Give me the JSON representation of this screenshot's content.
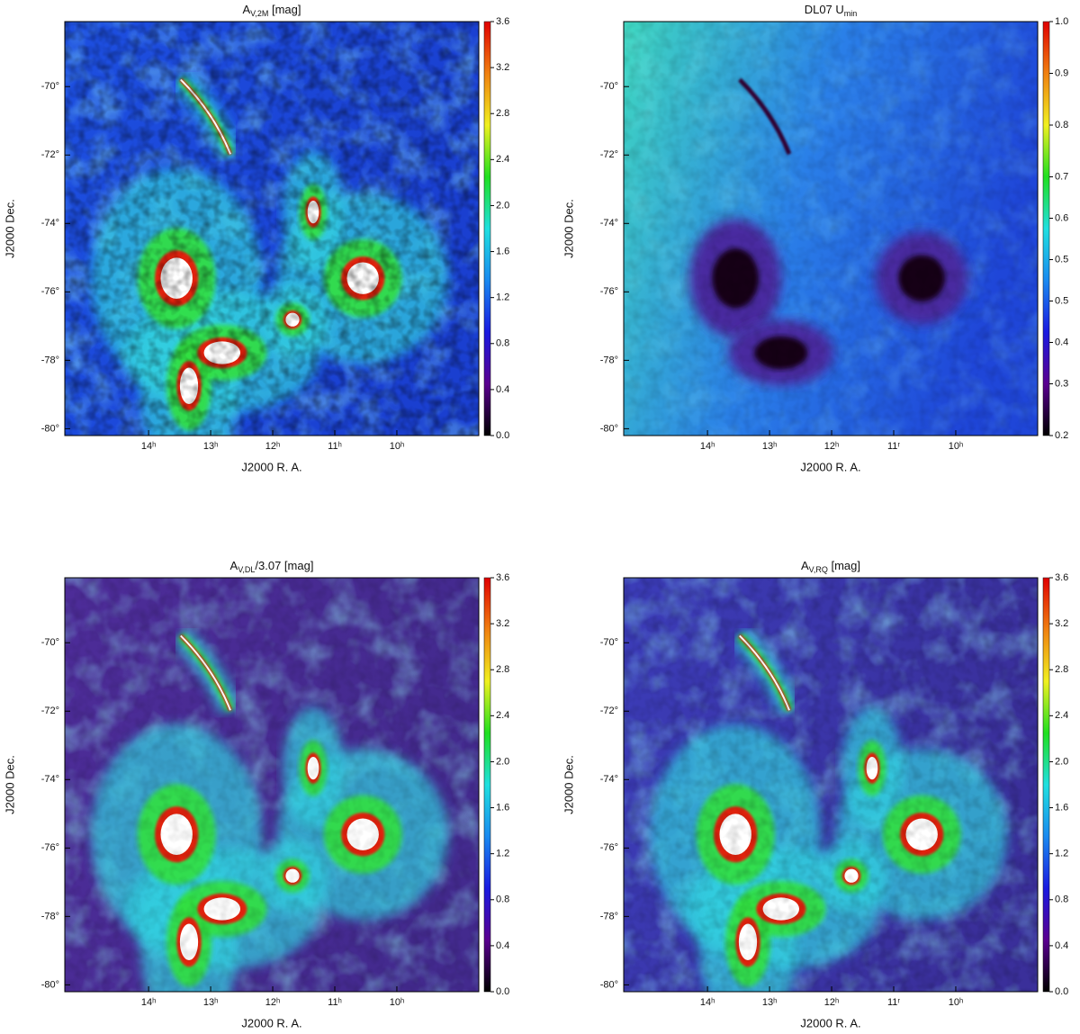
{
  "chart_data": [
    {
      "type": "heatmap",
      "title": {
        "text": "A",
        "subscript": "V,2M",
        "suffix": " [mag]"
      },
      "xlabel": "J2000 R. A.",
      "ylabel": "J2000 Dec.",
      "xlim": [
        15.35,
        8.68
      ],
      "xticks": [
        {
          "value": 14,
          "label": "14ʰ"
        },
        {
          "value": 13,
          "label": "13ʰ"
        },
        {
          "value": 12,
          "label": "12ʰ"
        },
        {
          "value": 11,
          "label": "11ʰ"
        },
        {
          "value": 10,
          "label": "10ʰ"
        }
      ],
      "ylim": [
        -80.2,
        -68.1
      ],
      "yticks": [
        {
          "value": -70,
          "label": "-70°"
        },
        {
          "value": -72,
          "label": "-72°"
        },
        {
          "value": -74,
          "label": "-74°"
        },
        {
          "value": -76,
          "label": "-76°"
        },
        {
          "value": -78,
          "label": "-78°"
        },
        {
          "value": -80,
          "label": "-80°"
        }
      ],
      "colorbar": {
        "lim": [
          0,
          3.6
        ],
        "ticks": [
          {
            "value": 0,
            "label": "0.0"
          },
          0.4,
          0.8,
          1.2,
          1.6,
          {
            "value": 2,
            "label": "2.0"
          },
          2.4,
          2.8,
          3.2,
          3.6
        ],
        "colors": [
          "#000000",
          "#5a0090",
          "#1a1ae0",
          "#1a8af0",
          "#20e0e0",
          "#20e020",
          "#f0f020",
          "#f08010",
          "#e00000"
        ]
      }
    },
    {
      "type": "heatmap",
      "title": {
        "text": "DL07 U",
        "subscript": "min",
        "suffix": ""
      },
      "xlabel": "J2000 R. A.",
      "ylabel": "J2000 Dec.",
      "xlim": [
        15.35,
        8.68
      ],
      "xticks": [
        {
          "value": 14,
          "label": "14ʰ"
        },
        {
          "value": 13,
          "label": "13ʰ"
        },
        {
          "value": 12,
          "label": "12ʰ"
        },
        {
          "value": 11,
          "label": "11ʳ"
        },
        {
          "value": 10,
          "label": "10ʰ"
        }
      ],
      "ylim": [
        -80.2,
        -68.1
      ],
      "yticks": [
        {
          "value": -70,
          "label": "-70°"
        },
        {
          "value": -72,
          "label": "-72°"
        },
        {
          "value": -74,
          "label": "-74°"
        },
        {
          "value": -76,
          "label": "-76°"
        },
        {
          "value": -78,
          "label": "-78°"
        },
        {
          "value": -80,
          "label": "-80°"
        }
      ],
      "colorbar": {
        "lim": [
          0.2,
          1.0
        ],
        "ticks": [
          0.2,
          0.3,
          {
            "value": 0.38,
            "label": "0.4"
          },
          {
            "value": 0.46,
            "label": "0.5"
          },
          {
            "value": 0.54,
            "label": "0.5"
          },
          {
            "value": 0.62,
            "label": "0.6"
          },
          0.7,
          0.8,
          0.9,
          {
            "value": 1.0,
            "label": "1.0"
          }
        ],
        "colors": [
          "#000000",
          "#5a0090",
          "#1a1ae0",
          "#1a8af0",
          "#20e0e0",
          "#20e020",
          "#f0f020",
          "#f08010",
          "#e00000"
        ]
      }
    },
    {
      "type": "heatmap",
      "title": {
        "text": "A",
        "subscript": "V,DL",
        "suffix": "/3.07 [mag]"
      },
      "xlabel": "J2000 R. A.",
      "ylabel": "J2000 Dec.",
      "xlim": [
        15.35,
        8.68
      ],
      "xticks": [
        {
          "value": 14,
          "label": "14ʰ"
        },
        {
          "value": 13,
          "label": "13ʰ"
        },
        {
          "value": 12,
          "label": "12ʰ"
        },
        {
          "value": 11,
          "label": "11ʰ"
        },
        {
          "value": 10,
          "label": "10ʰ"
        }
      ],
      "ylim": [
        -80.2,
        -68.1
      ],
      "yticks": [
        {
          "value": -70,
          "label": "-70°"
        },
        {
          "value": -72,
          "label": "-72°"
        },
        {
          "value": -74,
          "label": "-74°"
        },
        {
          "value": -76,
          "label": "-76°"
        },
        {
          "value": -78,
          "label": "-78°"
        },
        {
          "value": -80,
          "label": "-80°"
        }
      ],
      "colorbar": {
        "lim": [
          0,
          3.6
        ],
        "ticks": [
          {
            "value": 0,
            "label": "0.0"
          },
          0.4,
          0.8,
          1.2,
          1.6,
          {
            "value": 2,
            "label": "2.0"
          },
          2.4,
          2.8,
          3.2,
          3.6
        ],
        "colors": [
          "#000000",
          "#5a0090",
          "#1a1ae0",
          "#1a8af0",
          "#20e0e0",
          "#20e020",
          "#f0f020",
          "#f08010",
          "#e00000"
        ]
      }
    },
    {
      "type": "heatmap",
      "title": {
        "text": "A",
        "subscript": "V,RQ",
        "suffix": " [mag]"
      },
      "xlabel": "J2000 R. A.",
      "ylabel": "J2000 Dec.",
      "xlim": [
        15.35,
        8.68
      ],
      "xticks": [
        {
          "value": 14,
          "label": "14ʰ"
        },
        {
          "value": 13,
          "label": "13ʰ"
        },
        {
          "value": 12,
          "label": "12ʰ"
        },
        {
          "value": 11,
          "label": "11ʳ"
        },
        {
          "value": 10,
          "label": "10ʰ"
        }
      ],
      "ylim": [
        -80.2,
        -68.1
      ],
      "yticks": [
        {
          "value": -70,
          "label": "-70°"
        },
        {
          "value": -72,
          "label": "-72°"
        },
        {
          "value": -74,
          "label": "-74°"
        },
        {
          "value": -76,
          "label": "-76°"
        },
        {
          "value": -78,
          "label": "-78°"
        },
        {
          "value": -80,
          "label": "-80°"
        }
      ],
      "colorbar": {
        "lim": [
          0,
          3.6
        ],
        "ticks": [
          {
            "value": 0,
            "label": "0.0"
          },
          0.4,
          0.8,
          1.2,
          1.6,
          {
            "value": 2,
            "label": "2.0"
          },
          2.4,
          2.8,
          3.2,
          3.6
        ],
        "colors": [
          "#000000",
          "#5a0090",
          "#1a1ae0",
          "#1a8af0",
          "#20e0e0",
          "#20e020",
          "#f0f020",
          "#f08010",
          "#e00000"
        ]
      }
    }
  ]
}
